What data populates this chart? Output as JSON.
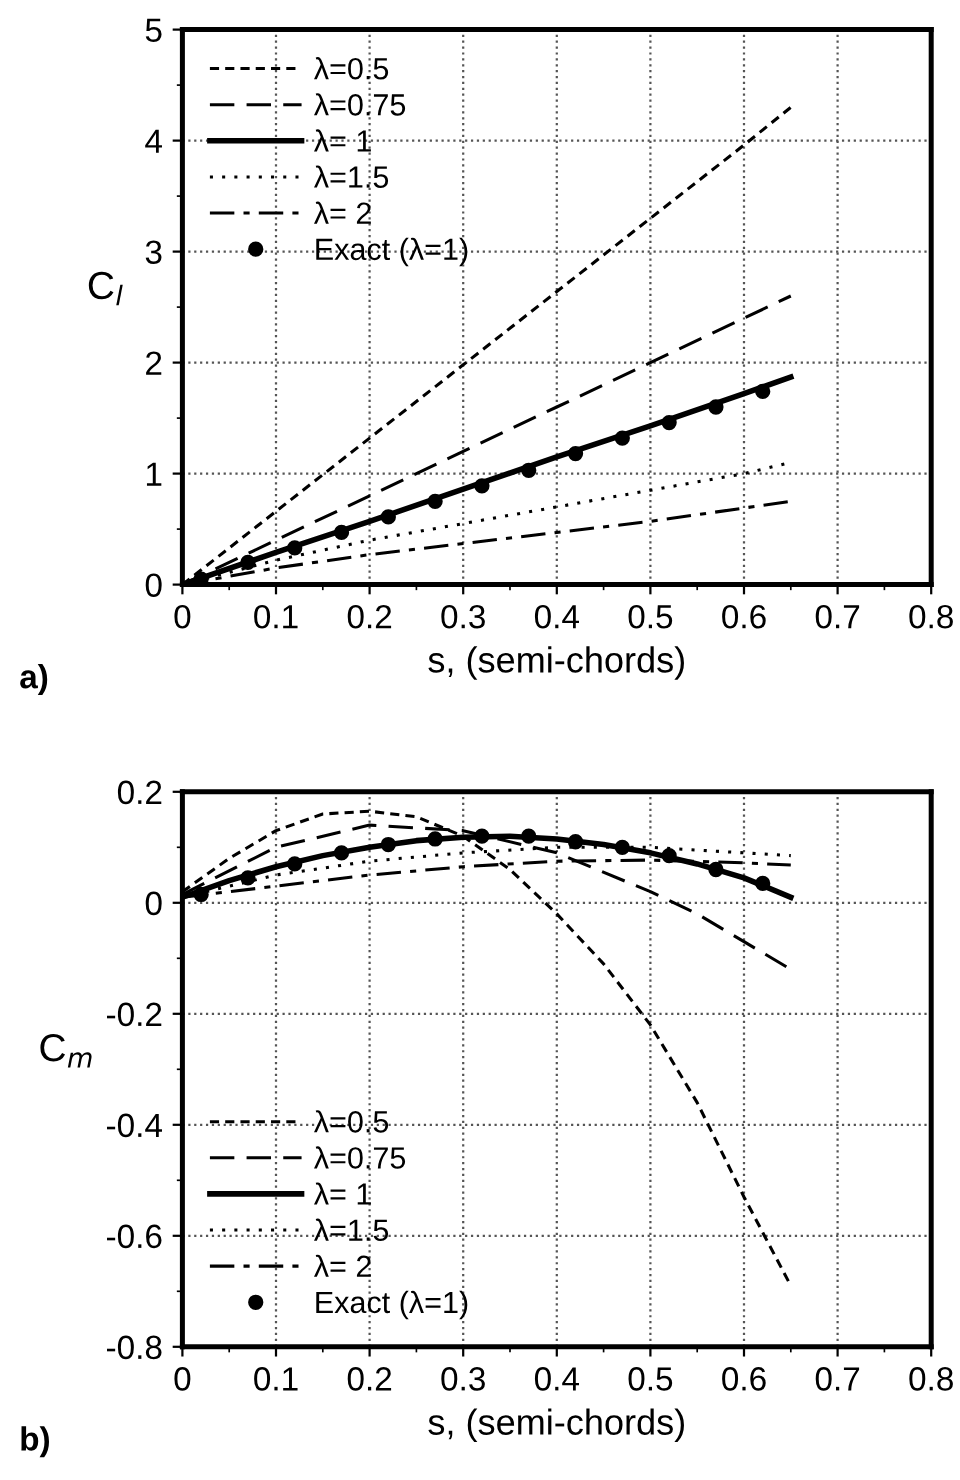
{
  "chart_data": [
    {
      "type": "line",
      "xlabel": "s, (semi-chords)",
      "ylabel": "C$_{l}$",
      "annotations": [
        "a)"
      ],
      "xlim": [
        0,
        0.8
      ],
      "ylim": [
        0,
        5
      ],
      "xticks": [
        0,
        0.1,
        0.2,
        0.3,
        0.4,
        0.5,
        0.6,
        0.7,
        0.8
      ],
      "yticks": [
        0,
        1,
        2,
        3,
        4,
        5
      ],
      "grid": true,
      "legend": "top left",
      "series": [
        {
          "name": "λ=0.5",
          "color": "#000000",
          "line_style": "dashed",
          "x": [
            0,
            0.1,
            0.2,
            0.3,
            0.4,
            0.5,
            0.6,
            0.65
          ],
          "values": [
            0,
            0.66,
            1.32,
            1.98,
            2.64,
            3.3,
            3.96,
            4.3
          ]
        },
        {
          "name": "λ=0.75",
          "color": "#000000",
          "line_style": "longdash",
          "x": [
            0,
            0.1,
            0.2,
            0.3,
            0.4,
            0.5,
            0.6,
            0.65
          ],
          "values": [
            0,
            0.4,
            0.8,
            1.2,
            1.6,
            2.0,
            2.4,
            2.6
          ]
        },
        {
          "name": "λ= 1",
          "color": "#000000",
          "line_style": "solid",
          "x": [
            0,
            0.1,
            0.2,
            0.3,
            0.4,
            0.5,
            0.6,
            0.65
          ],
          "values": [
            0,
            0.29,
            0.57,
            0.86,
            1.15,
            1.43,
            1.72,
            1.87
          ]
        },
        {
          "name": "λ=1.5",
          "color": "#000000",
          "line_style": "dotted",
          "x": [
            0,
            0.1,
            0.2,
            0.3,
            0.4,
            0.5,
            0.6,
            0.65
          ],
          "values": [
            0,
            0.22,
            0.4,
            0.55,
            0.7,
            0.85,
            1.0,
            1.1
          ]
        },
        {
          "name": "λ= 2",
          "color": "#000000",
          "line_style": "dashdot",
          "x": [
            0,
            0.1,
            0.2,
            0.3,
            0.4,
            0.5,
            0.6,
            0.65
          ],
          "values": [
            0,
            0.15,
            0.27,
            0.37,
            0.47,
            0.57,
            0.69,
            0.75
          ]
        },
        {
          "name": "Exact (λ=1)",
          "type": "scatter",
          "marker": "circle",
          "color": "#000000",
          "x": [
            0.02,
            0.07,
            0.12,
            0.17,
            0.22,
            0.27,
            0.32,
            0.37,
            0.42,
            0.47,
            0.52,
            0.57,
            0.62
          ],
          "values": [
            0.05,
            0.2,
            0.33,
            0.47,
            0.61,
            0.75,
            0.89,
            1.03,
            1.18,
            1.32,
            1.46,
            1.6,
            1.74
          ]
        }
      ]
    },
    {
      "type": "line",
      "xlabel": "s, (semi-chords)",
      "ylabel": "C$_{m}$",
      "annotations": [
        "b)"
      ],
      "xlim": [
        0,
        0.8
      ],
      "ylim": [
        -0.8,
        0.2
      ],
      "xticks": [
        0,
        0.1,
        0.2,
        0.3,
        0.4,
        0.5,
        0.6,
        0.7,
        0.8
      ],
      "yticks": [
        -0.8,
        -0.6,
        -0.4,
        -0.2,
        0,
        0.2
      ],
      "grid": true,
      "legend": "bottom left",
      "series": [
        {
          "name": "λ=0.5",
          "color": "#000000",
          "line_style": "dashed",
          "x": [
            0,
            0.05,
            0.1,
            0.15,
            0.2,
            0.25,
            0.3,
            0.35,
            0.4,
            0.45,
            0.5,
            0.55,
            0.6,
            0.65
          ],
          "values": [
            0.02,
            0.08,
            0.13,
            0.16,
            0.165,
            0.155,
            0.12,
            0.06,
            -0.02,
            -0.11,
            -0.22,
            -0.36,
            -0.53,
            -0.69
          ]
        },
        {
          "name": "λ=0.75",
          "color": "#000000",
          "line_style": "longdash",
          "x": [
            0,
            0.1,
            0.2,
            0.3,
            0.4,
            0.5,
            0.55,
            0.6,
            0.65
          ],
          "values": [
            0.015,
            0.1,
            0.14,
            0.13,
            0.09,
            0.02,
            -0.02,
            -0.07,
            -0.12
          ]
        },
        {
          "name": "λ= 1",
          "color": "#000000",
          "line_style": "solid",
          "x": [
            0,
            0.05,
            0.1,
            0.15,
            0.2,
            0.25,
            0.3,
            0.35,
            0.4,
            0.45,
            0.5,
            0.55,
            0.6,
            0.65
          ],
          "values": [
            0.01,
            0.04,
            0.065,
            0.085,
            0.1,
            0.112,
            0.118,
            0.12,
            0.115,
            0.105,
            0.09,
            0.07,
            0.045,
            0.01
          ]
        },
        {
          "name": "λ=1.5",
          "color": "#000000",
          "line_style": "dotted",
          "x": [
            0,
            0.1,
            0.2,
            0.3,
            0.4,
            0.5,
            0.6,
            0.65
          ],
          "values": [
            0.01,
            0.05,
            0.075,
            0.09,
            0.1,
            0.1,
            0.09,
            0.085
          ]
        },
        {
          "name": "λ= 2",
          "color": "#000000",
          "line_style": "dashdot",
          "x": [
            0,
            0.1,
            0.2,
            0.3,
            0.4,
            0.5,
            0.6,
            0.65
          ],
          "values": [
            0.01,
            0.03,
            0.05,
            0.065,
            0.075,
            0.077,
            0.072,
            0.068
          ]
        },
        {
          "name": "Exact (λ=1)",
          "type": "scatter",
          "marker": "circle",
          "color": "#000000",
          "x": [
            0.02,
            0.07,
            0.12,
            0.17,
            0.22,
            0.27,
            0.32,
            0.37,
            0.42,
            0.47,
            0.52,
            0.57,
            0.62
          ],
          "values": [
            0.015,
            0.045,
            0.07,
            0.09,
            0.105,
            0.115,
            0.12,
            0.12,
            0.11,
            0.1,
            0.085,
            0.06,
            0.035
          ]
        }
      ]
    }
  ]
}
